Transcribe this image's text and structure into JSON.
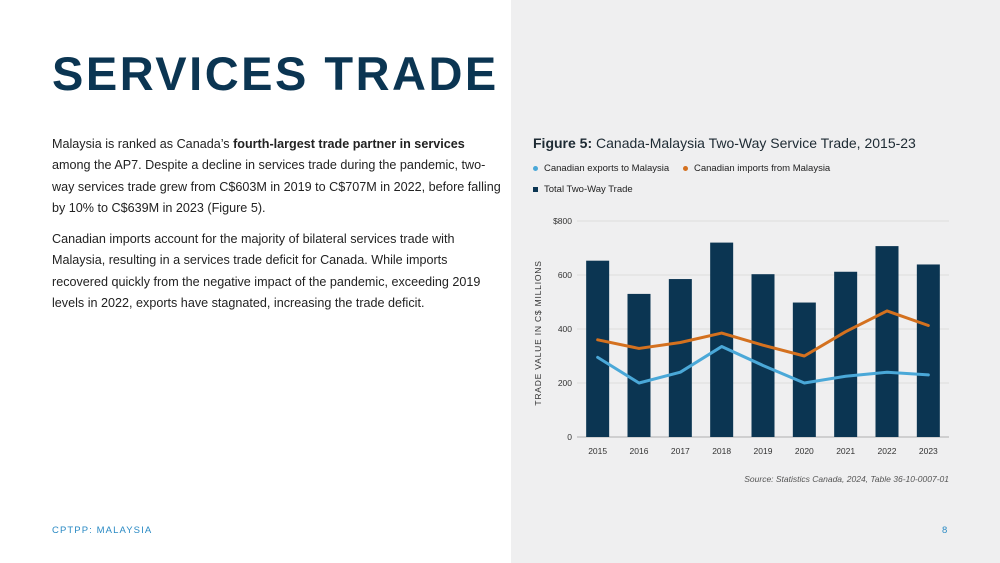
{
  "page": {
    "title": "SERVICES TRADE",
    "paragraph1": {
      "before": "Malaysia is ranked as Canada’s ",
      "bold": "fourth-largest trade partner in services",
      "after": " among the AP7. Despite a decline in services trade during the pandemic, two-way services trade grew from C$603M in 2019 to C$707M in 2022, before falling by 10% to C$639M in 2023 (Figure 5)."
    },
    "paragraph2": "Canadian imports account for the majority of bilateral services trade with Malaysia, resulting in a services trade deficit for Canada. While imports recovered quickly from the negative impact of the pandemic, exceeding 2019 levels in 2022, exports have stagnated, increasing the trade deficit.",
    "footer_left": "CPTPP: MALAYSIA",
    "page_number": "8",
    "source": "Source: Statistics Canada, 2024, Table 36-10-0007-01"
  },
  "figure": {
    "label": "Figure 5:",
    "caption": "Canada-Malaysia Two-Way Service Trade, 2015-23"
  },
  "colors": {
    "bar": "#0b3552",
    "exports": "#4aa8d8",
    "imports": "#d4711f",
    "title": "#0b3552",
    "footer": "#2a8ac4"
  },
  "chart_data": {
    "type": "bar",
    "categories": [
      "2015",
      "2016",
      "2017",
      "2018",
      "2019",
      "2020",
      "2021",
      "2022",
      "2023"
    ],
    "series": [
      {
        "name": "Total Two-Way Trade",
        "type": "bar",
        "values": [
          653,
          530,
          585,
          720,
          603,
          498,
          612,
          707,
          639
        ]
      },
      {
        "name": "Canadian exports to Malaysia",
        "type": "line",
        "values": [
          295,
          200,
          240,
          335,
          265,
          200,
          225,
          240,
          230
        ]
      },
      {
        "name": "Canadian imports from Malaysia",
        "type": "line",
        "values": [
          360,
          328,
          350,
          385,
          340,
          300,
          390,
          467,
          413
        ]
      }
    ],
    "ylabel": "TRADE VALUE IN C$ MILLIONS",
    "ylim": [
      0,
      800
    ],
    "yticks": [
      0,
      200,
      400,
      600,
      800
    ],
    "ytick_labels": [
      "0",
      "200",
      "400",
      "600",
      "$800"
    ],
    "grid": true,
    "legend_position": "top-left"
  }
}
